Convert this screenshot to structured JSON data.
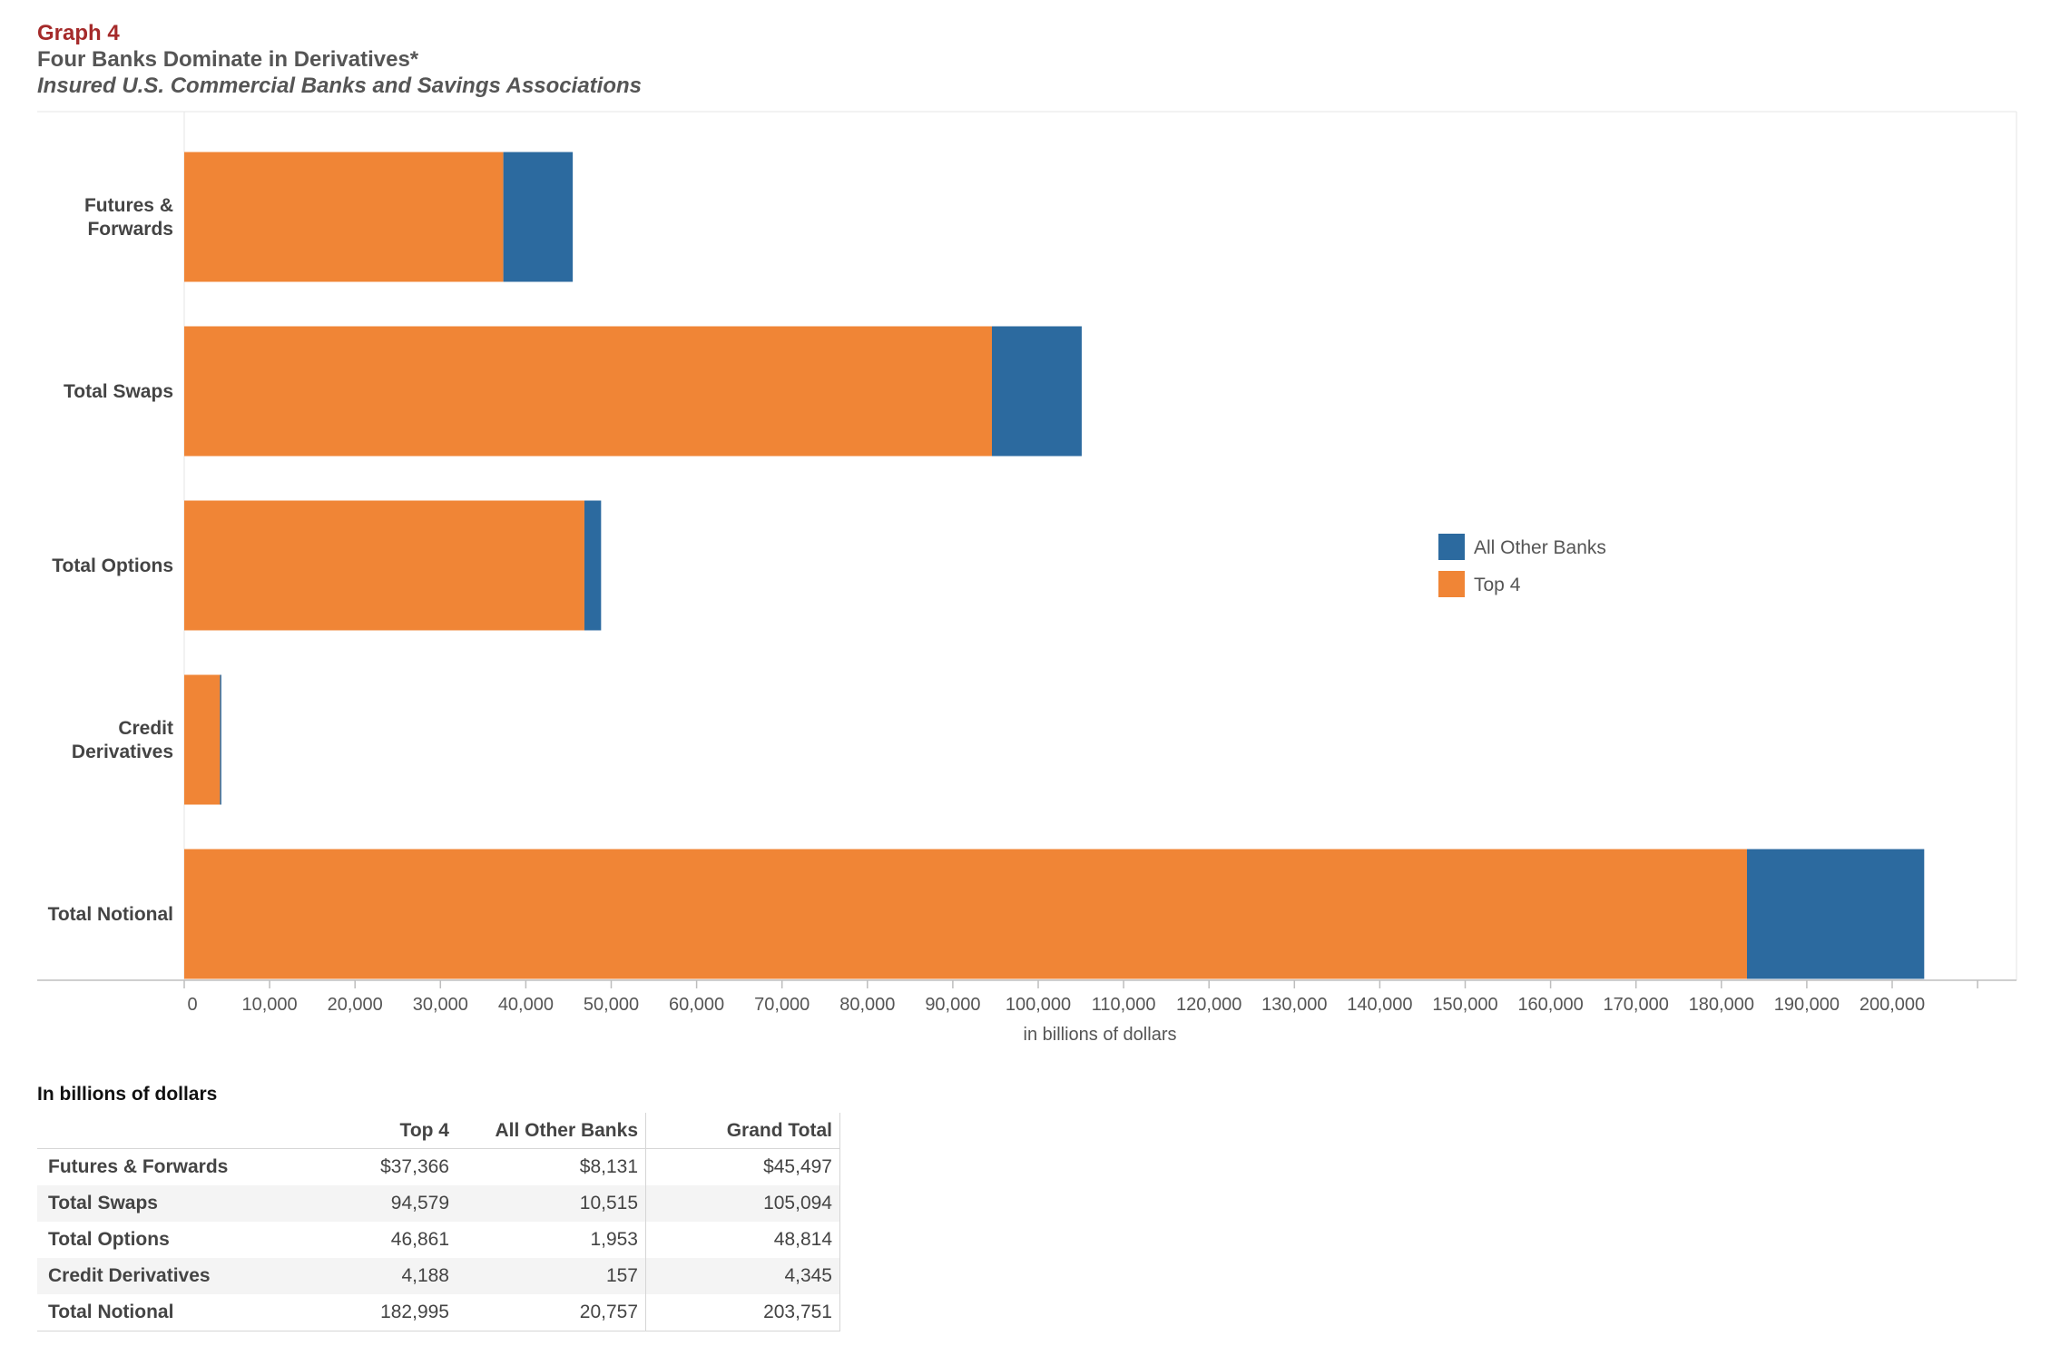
{
  "header": {
    "graph_label": "Graph 4",
    "title": "Four Banks Dominate in Derivatives*",
    "subtitle": "Insured U.S. Commercial Banks and Savings Associations"
  },
  "chart_data": {
    "type": "bar",
    "orientation": "horizontal",
    "stacked": true,
    "categories": [
      "Futures & Forwards",
      "Total Swaps",
      "Total Options",
      "Credit Derivatives",
      "Total Notional"
    ],
    "category_display": [
      [
        "Futures &",
        "Forwards"
      ],
      [
        "Total Swaps"
      ],
      [
        "Total Options"
      ],
      [
        "Credit",
        "Derivatives"
      ],
      [
        "Total Notional"
      ]
    ],
    "series": [
      {
        "name": "Top 4",
        "color": "#f08536",
        "values": [
          37366,
          94579,
          46861,
          4188,
          182995
        ]
      },
      {
        "name": "All Other Banks",
        "color": "#2c6a9f",
        "values": [
          8131,
          10515,
          1953,
          157,
          20757
        ]
      }
    ],
    "legend_order": [
      "All Other Banks",
      "Top 4"
    ],
    "legend_position": "right",
    "xlabel": "in billions of dollars",
    "xlim": [
      0,
      210000
    ],
    "xticks": [
      0,
      10000,
      20000,
      30000,
      40000,
      50000,
      60000,
      70000,
      80000,
      90000,
      100000,
      110000,
      120000,
      130000,
      140000,
      150000,
      160000,
      170000,
      180000,
      190000,
      200000
    ],
    "xtick_labels": [
      "0",
      "10,000",
      "20,000",
      "30,000",
      "40,000",
      "50,000",
      "60,000",
      "70,000",
      "80,000",
      "90,000",
      "100,000",
      "110,000",
      "120,000",
      "130,000",
      "140,000",
      "150,000",
      "160,000",
      "170,000",
      "180,000",
      "190,000",
      "200,000"
    ],
    "grid": false
  },
  "table": {
    "caption": "In billions of dollars",
    "columns": [
      "Top 4",
      "All Other Banks",
      "Grand Total"
    ],
    "rows": [
      {
        "label": "Futures & Forwards",
        "values": [
          "$37,366",
          "$8,131",
          "$45,497"
        ]
      },
      {
        "label": "Total Swaps",
        "values": [
          "94,579",
          "10,515",
          "105,094"
        ]
      },
      {
        "label": "Total Options",
        "values": [
          "46,861",
          "1,953",
          "48,814"
        ]
      },
      {
        "label": "Credit Derivatives",
        "values": [
          "4,188",
          "157",
          "4,345"
        ]
      },
      {
        "label": "Total Notional",
        "values": [
          "182,995",
          "20,757",
          "203,751"
        ]
      }
    ]
  }
}
